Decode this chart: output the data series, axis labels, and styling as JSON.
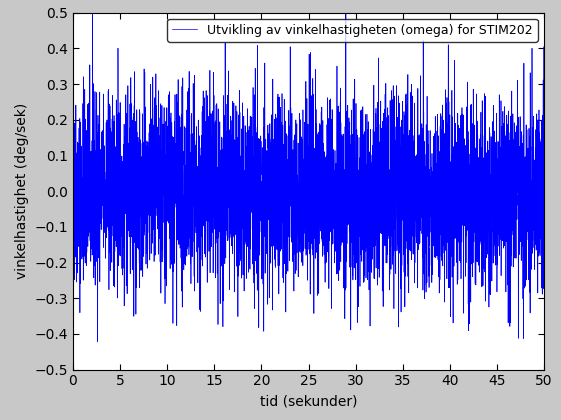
{
  "title": "",
  "xlabel": "tid (sekunder)",
  "ylabel": "vinkelhastighet (deg/sek)",
  "legend_label": "Utvikling av vinkelhastigheten (omega) for STIM202",
  "xlim": [
    0,
    50
  ],
  "ylim": [
    -0.5,
    0.5
  ],
  "xticks": [
    0,
    5,
    10,
    15,
    20,
    25,
    30,
    35,
    40,
    45,
    50
  ],
  "yticks": [
    -0.5,
    -0.4,
    -0.3,
    -0.2,
    -0.1,
    0.0,
    0.1,
    0.2,
    0.3,
    0.4,
    0.5
  ],
  "line_color": "blue",
  "fig_facecolor": "#c8c8c8",
  "axes_facecolor": "#ffffff",
  "n_samples": 5000,
  "duration": 50,
  "bias": 0.0,
  "noise_std": 0.13,
  "seed": 42,
  "figsize": [
    5.61,
    4.2
  ],
  "dpi": 100,
  "xlabel_fontsize": 10,
  "ylabel_fontsize": 10,
  "tick_fontsize": 10,
  "legend_fontsize": 9
}
